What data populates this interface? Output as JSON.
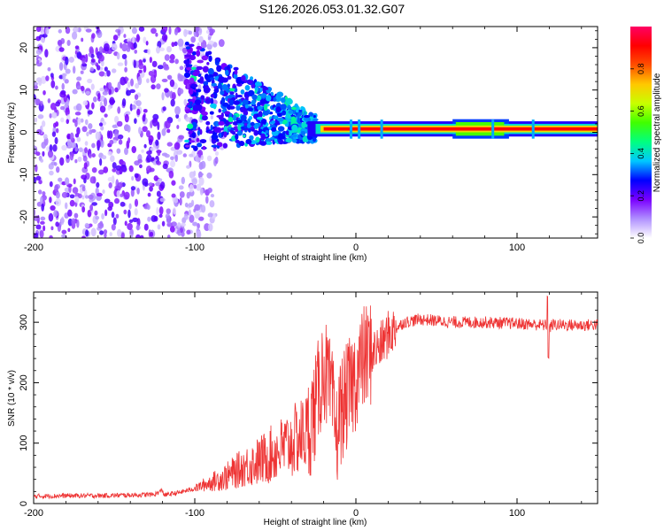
{
  "title": "S126.2026.053.01.32.G07",
  "colors": {
    "snr_line": "#ee3333",
    "background": "#ffffff",
    "axis": "#000000"
  },
  "chart_data": [
    {
      "type": "heatmap",
      "name": "spectrogram",
      "xlabel": "Height of straight line (km)",
      "ylabel": "Frequency (Hz)",
      "xlim": [
        -200,
        150
      ],
      "ylim": [
        -25,
        25
      ],
      "x_ticks": [
        -200,
        -100,
        0,
        100
      ],
      "y_ticks": [
        -20,
        -10,
        0,
        10,
        20
      ],
      "colorbar": {
        "label": "Normalized spectral amplitude",
        "range": [
          0,
          1
        ],
        "ticks": [
          "0.0",
          "0.2",
          "0.4",
          "0.6",
          "0.8"
        ],
        "tick_values": [
          0.0,
          0.2,
          0.4,
          0.6,
          0.8
        ],
        "colormap": [
          "#ffffff",
          "#b090ff",
          "#7a00ff",
          "#0000ff",
          "#00c8ff",
          "#00ff80",
          "#40ff00",
          "#c8ff00",
          "#ffc800",
          "#ff5000",
          "#ff0000",
          "#ff0064"
        ]
      },
      "regions": [
        {
          "x_range": [
            -200,
            -100
          ],
          "description": "scattered low-amplitude noise",
          "freq_spread": 25,
          "amplitude": 0.12
        },
        {
          "x_range": [
            -100,
            -30
          ],
          "description": "converging energy",
          "freq_center_start": 10,
          "freq_center_end": 0,
          "amplitude": 0.25
        },
        {
          "x_range": [
            -30,
            150
          ],
          "description": "coherent carrier line",
          "freq_center": 0.8,
          "amplitude": 0.95
        }
      ]
    },
    {
      "type": "line",
      "name": "snr",
      "xlabel": "Height of straight line (km)",
      "ylabel": "SNR (10 * v/v)",
      "xlim": [
        -200,
        150
      ],
      "ylim": [
        0,
        350
      ],
      "x_ticks": [
        -200,
        -100,
        0,
        100
      ],
      "y_ticks": [
        0,
        100,
        200,
        300
      ],
      "series": [
        {
          "name": "SNR",
          "x": [
            -200,
            -180,
            -160,
            -140,
            -125,
            -120,
            -119,
            -110,
            -100,
            -90,
            -80,
            -70,
            -60,
            -50,
            -40,
            -30,
            -25,
            -20,
            -15,
            -12,
            -10,
            -5,
            0,
            5,
            10,
            15,
            20,
            30,
            40,
            60,
            80,
            100,
            118,
            120,
            122,
            140,
            150
          ],
          "values": [
            12,
            13,
            13,
            14,
            15,
            22,
            14,
            18,
            25,
            35,
            45,
            60,
            70,
            85,
            100,
            120,
            160,
            230,
            170,
            110,
            150,
            180,
            210,
            240,
            250,
            260,
            280,
            300,
            305,
            300,
            300,
            298,
            295,
            290,
            296,
            295,
            296
          ]
        }
      ]
    }
  ],
  "tick_text": {
    "x": [
      "-200",
      "-100",
      "0",
      "100"
    ],
    "y_top": [
      "-20",
      "-10",
      "0",
      "10",
      "20"
    ],
    "y_bottom": [
      "0",
      "100",
      "200",
      "300"
    ]
  }
}
